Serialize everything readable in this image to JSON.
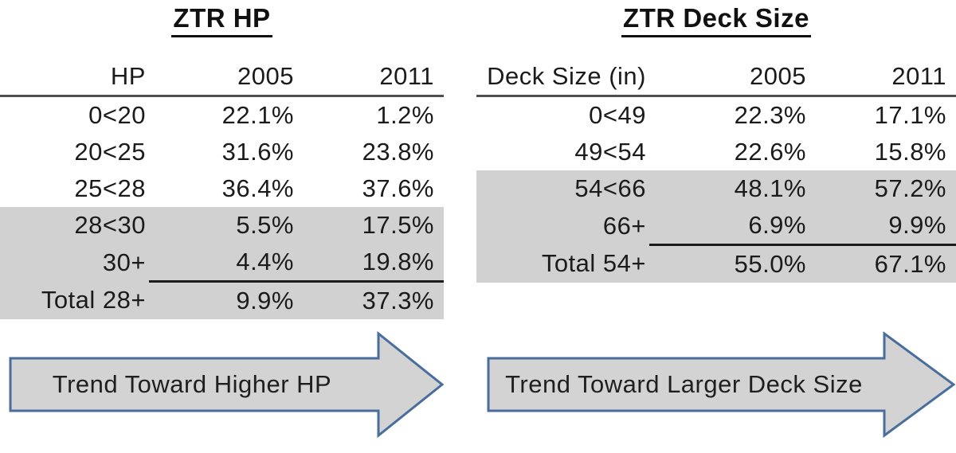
{
  "chart_data": [
    {
      "type": "table",
      "title": "ZTR HP",
      "columns": [
        "HP",
        "2005",
        "2011"
      ],
      "rows": [
        {
          "range": "0<20",
          "v2005": "22.1%",
          "v2011": "1.2%",
          "shaded": false,
          "total": false
        },
        {
          "range": "20<25",
          "v2005": "31.6%",
          "v2011": "23.8%",
          "shaded": false,
          "total": false
        },
        {
          "range": "25<28",
          "v2005": "36.4%",
          "v2011": "37.6%",
          "shaded": false,
          "total": false
        },
        {
          "range": "28<30",
          "v2005": "5.5%",
          "v2011": "17.5%",
          "shaded": true,
          "total": false
        },
        {
          "range": "30+",
          "v2005": "4.4%",
          "v2011": "19.8%",
          "shaded": true,
          "total": false
        },
        {
          "range": "Total 28+",
          "v2005": "9.9%",
          "v2011": "37.3%",
          "shaded": true,
          "total": true
        }
      ],
      "annotation": "Trend Toward Higher HP"
    },
    {
      "type": "table",
      "title": "ZTR Deck Size",
      "columns": [
        "Deck Size (in)",
        "2005",
        "2011"
      ],
      "rows": [
        {
          "range": "0<49",
          "v2005": "22.3%",
          "v2011": "17.1%",
          "shaded": false,
          "total": false
        },
        {
          "range": "49<54",
          "v2005": "22.6%",
          "v2011": "15.8%",
          "shaded": false,
          "total": false
        },
        {
          "range": "54<66",
          "v2005": "48.1%",
          "v2011": "57.2%",
          "shaded": true,
          "total": false
        },
        {
          "range": "66+",
          "v2005": "6.9%",
          "v2011": "9.9%",
          "shaded": true,
          "total": false
        },
        {
          "range": "Total 54+",
          "v2005": "55.0%",
          "v2011": "67.1%",
          "shaded": true,
          "total": true
        }
      ],
      "annotation": "Trend Toward Larger Deck Size"
    }
  ],
  "colors": {
    "shaded_row": "#d1d1d1",
    "arrow_fill": "#d3d3d3",
    "arrow_border": "#4a6e9c",
    "header_rule": "#4f4f4f",
    "total_rule": "#1c1c1c",
    "text": "#1b1b1b"
  }
}
